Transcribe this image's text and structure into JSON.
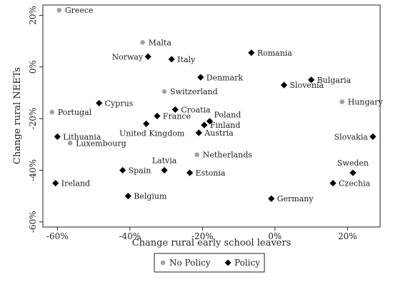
{
  "chart_data": {
    "type": "scatter",
    "xlabel": "Change rural early school leavers",
    "ylabel": "Change rural NEETs",
    "xlim": [
      -64,
      29
    ],
    "ylim": [
      -62,
      24
    ],
    "xticks": [
      -60,
      -40,
      -20,
      0,
      20
    ],
    "yticks": [
      -60,
      -40,
      -20,
      0,
      20
    ],
    "xtick_labels": [
      "-60%",
      "-40%",
      "-20%",
      "0%",
      "20%"
    ],
    "ytick_labels": [
      "-60%",
      "-40%",
      "-20%",
      "0%",
      "20%"
    ],
    "grid": false,
    "legend_position": "bottom",
    "series": [
      {
        "name": "No Policy",
        "marker": "circle",
        "color": "#a0a0a0",
        "points": [
          {
            "label": "Greece",
            "x": -59.5,
            "y": 22.0
          },
          {
            "label": "Malta",
            "x": -36.5,
            "y": 9.5
          },
          {
            "label": "Switzerland",
            "x": -30.5,
            "y": -9.5
          },
          {
            "label": "Portugal",
            "x": -61.5,
            "y": -17.5
          },
          {
            "label": "Luxembourg",
            "x": -56.5,
            "y": -29.5
          },
          {
            "label": "Netherlands",
            "x": -21.5,
            "y": -34.0
          },
          {
            "label": "Hungary",
            "x": 18.5,
            "y": -13.5
          }
        ]
      },
      {
        "name": "Policy",
        "marker": "diamond",
        "color": "#000000",
        "points": [
          {
            "label": "Romania",
            "x": -6.5,
            "y": 5.5
          },
          {
            "label": "Norway",
            "x": -35.0,
            "y": 4.0
          },
          {
            "label": "Italy",
            "x": -28.5,
            "y": 3.0
          },
          {
            "label": "Denmark",
            "x": -20.5,
            "y": -4.0
          },
          {
            "label": "Bulgaria",
            "x": 10.0,
            "y": -5.0
          },
          {
            "label": "Slovenia",
            "x": 2.5,
            "y": -7.0
          },
          {
            "label": "Cyprus",
            "x": -48.5,
            "y": -14.0
          },
          {
            "label": "Croatia",
            "x": -27.5,
            "y": -16.5
          },
          {
            "label": "France",
            "x": -32.5,
            "y": -19.0
          },
          {
            "label": "Poland",
            "x": -18.0,
            "y": -21.0
          },
          {
            "label": "Finland",
            "x": -19.5,
            "y": -22.5
          },
          {
            "label": "United Kingdom",
            "x": -35.5,
            "y": -22.0
          },
          {
            "label": "Austria",
            "x": -21.0,
            "y": -25.5
          },
          {
            "label": "Lithuania",
            "x": -60.0,
            "y": -27.0
          },
          {
            "label": "Slovakia",
            "x": 27.0,
            "y": -27.0
          },
          {
            "label": "Spain",
            "x": -42.0,
            "y": -40.0
          },
          {
            "label": "Latvia",
            "x": -30.5,
            "y": -40.0
          },
          {
            "label": "Estonia",
            "x": -23.5,
            "y": -41.0
          },
          {
            "label": "Sweden",
            "x": 21.5,
            "y": -41.0
          },
          {
            "label": "Ireland",
            "x": -60.5,
            "y": -45.0
          },
          {
            "label": "Czechia",
            "x": 16.0,
            "y": -45.0
          },
          {
            "label": "Belgium",
            "x": -40.5,
            "y": -50.0
          },
          {
            "label": "Germany",
            "x": -1.0,
            "y": -51.0
          }
        ]
      }
    ]
  }
}
